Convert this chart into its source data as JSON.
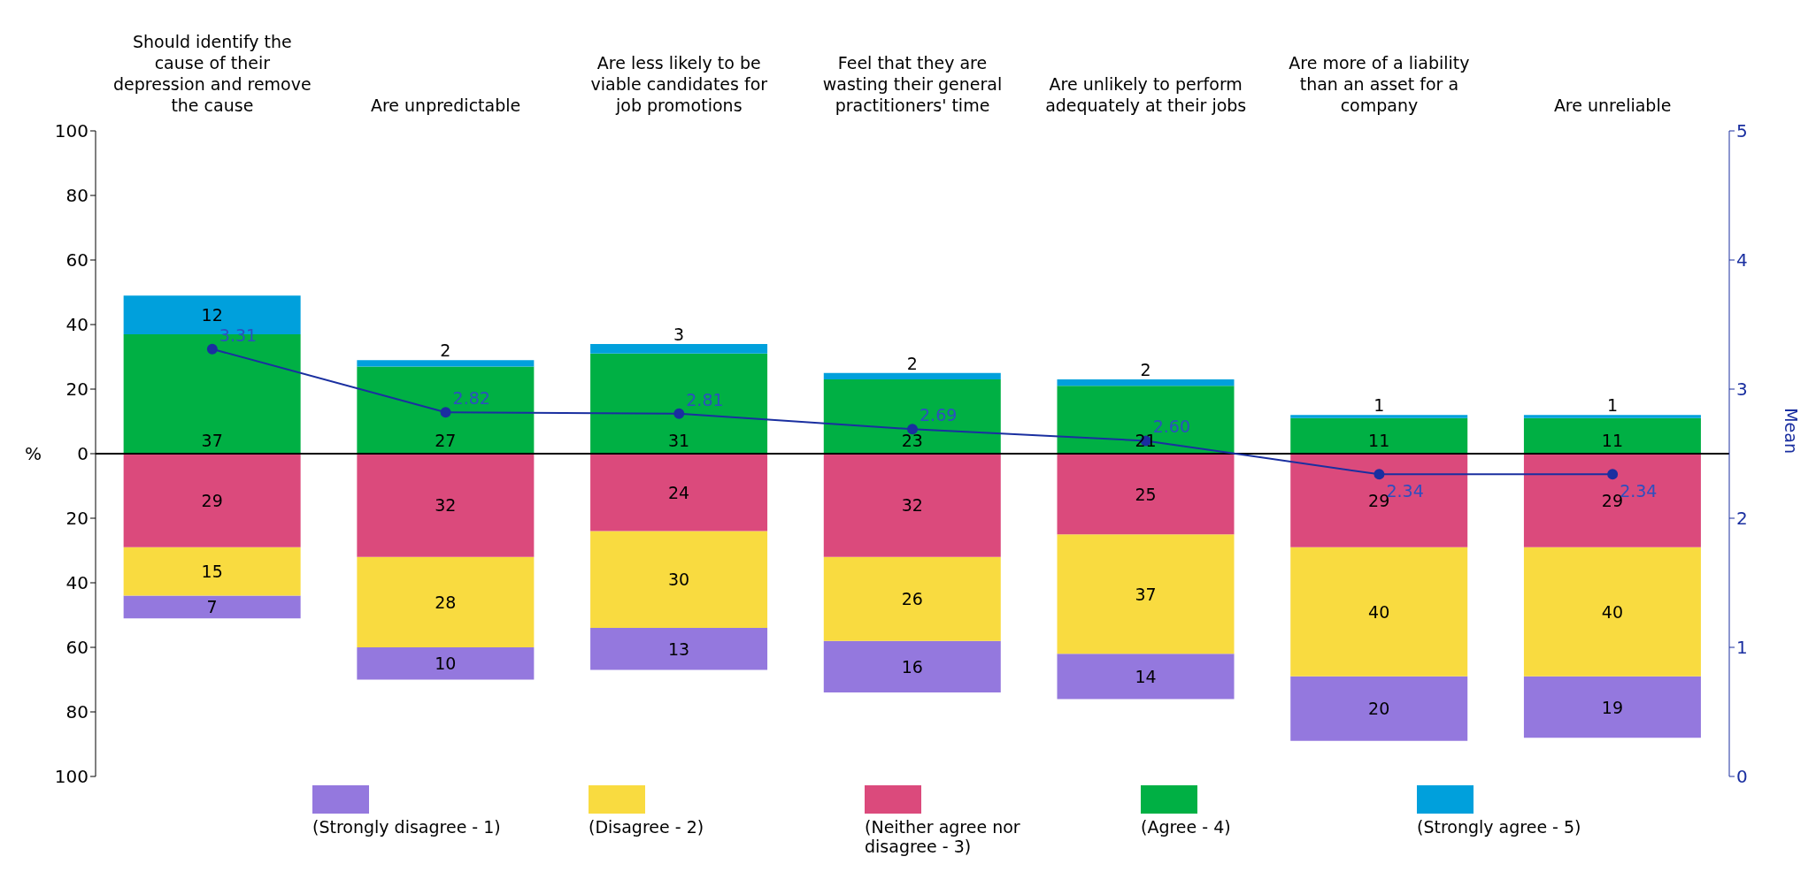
{
  "chart_data": {
    "type": "bar",
    "categories": [
      "Should identify the cause of their depression and remove the cause",
      "Are unpredictable",
      "Are less likely to be viable candidates for job promotions",
      "Feel that they are wasting their general practitioners' time",
      "Are unlikely to perform adequately at their jobs",
      "Are more of a liability than an asset for a company",
      "Are unreliable"
    ],
    "series": [
      {
        "name": "(Strongly disagree - 1)",
        "color": "#9478de",
        "values": [
          7,
          10,
          13,
          16,
          14,
          20,
          19
        ],
        "base": [
          -51,
          -70,
          -67,
          -74,
          -76,
          -89,
          -88
        ]
      },
      {
        "name": "(Disagree - 2)",
        "color": "#f9db40",
        "values": [
          15,
          28,
          30,
          26,
          37,
          40,
          40
        ],
        "base": [
          -44,
          -60,
          -54,
          -58,
          -62,
          -69,
          -69
        ]
      },
      {
        "name": "(Neither agree nor disagree - 3)",
        "color": "#db4a7c",
        "values": [
          29,
          32,
          24,
          32,
          25,
          29,
          29
        ],
        "base": [
          -29,
          -32,
          -24,
          -32,
          -25,
          -29,
          -29
        ]
      },
      {
        "name": "(Agree - 4)",
        "color": "#00b044",
        "values": [
          37,
          27,
          31,
          23,
          21,
          11,
          11
        ],
        "base": [
          0,
          0,
          0,
          0,
          0,
          0,
          0
        ]
      },
      {
        "name": "(Strongly agree - 5)",
        "color": "#00a0dc",
        "values": [
          12,
          2,
          3,
          2,
          2,
          1,
          1
        ],
        "base": [
          37,
          27,
          31,
          23,
          21,
          11,
          11
        ]
      },
      {
        "type": "line",
        "axis": "y2",
        "color": "#1a2fa0",
        "values": [
          3.31,
          2.82,
          2.81,
          2.69,
          2.6,
          2.34,
          2.34
        ],
        "value_labels": [
          "3.31",
          "2.82",
          "2.81",
          "2.69",
          "2.60",
          "2.34",
          "2.34"
        ]
      }
    ],
    "data_labels": true,
    "ylabel": "%",
    "y2label": "Mean",
    "ylim": [
      -100,
      100
    ],
    "yticks": [
      {
        "value": -100,
        "label": "100"
      },
      {
        "value": -80,
        "label": "80"
      },
      {
        "value": -60,
        "label": "60"
      },
      {
        "value": -40,
        "label": "40"
      },
      {
        "value": -20,
        "label": "20"
      },
      0,
      20,
      40,
      60,
      80,
      100
    ],
    "y2lim": [
      0,
      5
    ],
    "y2ticks": [
      0,
      1,
      2,
      3,
      4,
      5
    ],
    "ref_lines": [
      {
        "axis": "y",
        "value": 0,
        "color": "#000000"
      }
    ],
    "marker": "circle",
    "line_style": "solid",
    "legend": "bottom"
  }
}
